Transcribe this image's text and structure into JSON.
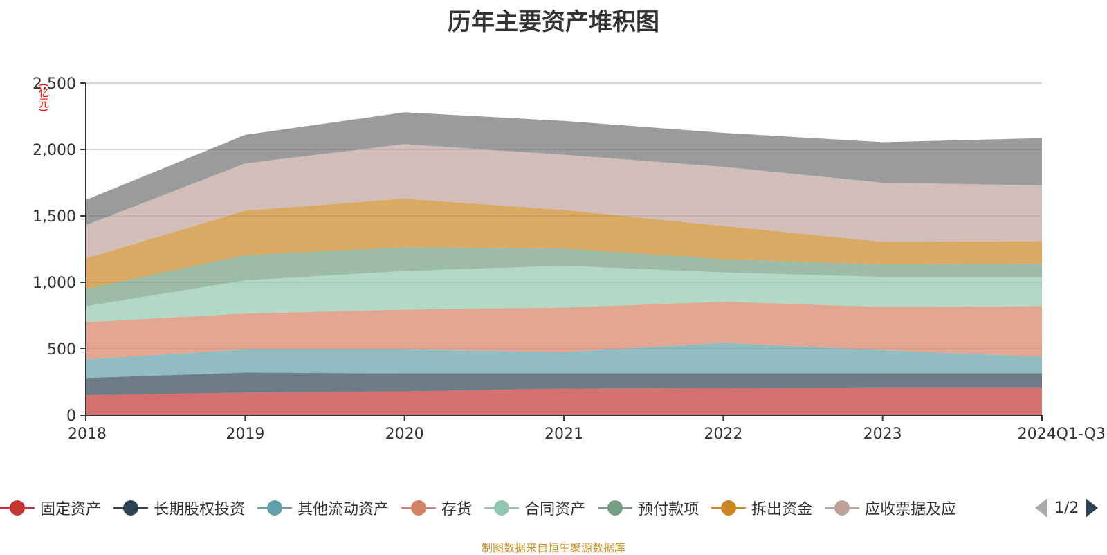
{
  "title": "历年主要资产堆积图",
  "unit_label": "(亿元)",
  "source": "制图数据来自恒生聚源数据库",
  "pager": {
    "text": "1/2",
    "prev_icon": "triangle-left-icon",
    "next_icon": "triangle-right-icon"
  },
  "chart_data": {
    "type": "area",
    "stacked": true,
    "categories": [
      "2018",
      "2019",
      "2020",
      "2021",
      "2022",
      "2023",
      "2024Q1-Q3"
    ],
    "ylim": [
      0,
      2500
    ],
    "yticks": [
      "0",
      "500",
      "1,000",
      "1,500",
      "2,000",
      "2,500"
    ],
    "ytick_values": [
      0,
      500,
      1000,
      1500,
      2000,
      2500
    ],
    "grid": true,
    "legend_position": "bottom",
    "series": [
      {
        "name": "固定资产",
        "color": "#c23531",
        "values": [
          150,
          170,
          180,
          200,
          205,
          210,
          210
        ]
      },
      {
        "name": "长期股权投资",
        "color": "#2f4554",
        "values": [
          130,
          150,
          135,
          115,
          110,
          105,
          105
        ]
      },
      {
        "name": "其他流动资产",
        "color": "#61a0a8",
        "values": [
          140,
          175,
          180,
          160,
          230,
          175,
          125
        ]
      },
      {
        "name": "存货",
        "color": "#d48265",
        "values": [
          280,
          270,
          300,
          335,
          310,
          325,
          380
        ]
      },
      {
        "name": "合同资产",
        "color": "#91c7ae",
        "values": [
          120,
          250,
          290,
          315,
          220,
          225,
          220
        ]
      },
      {
        "name": "预付款项",
        "color": "#749f83",
        "values": [
          130,
          190,
          180,
          130,
          100,
          95,
          100
        ]
      },
      {
        "name": "拆出资金",
        "color": "#ca8622",
        "values": [
          230,
          335,
          365,
          290,
          250,
          170,
          170
        ]
      },
      {
        "name": "应收票据及应收账款",
        "legend_label": "应收票据及应",
        "color": "#bda29a",
        "values": [
          250,
          355,
          410,
          415,
          445,
          445,
          420
        ]
      },
      {
        "color": "#6e7074",
        "values": [
          190,
          215,
          240,
          255,
          255,
          305,
          355
        ]
      }
    ]
  }
}
